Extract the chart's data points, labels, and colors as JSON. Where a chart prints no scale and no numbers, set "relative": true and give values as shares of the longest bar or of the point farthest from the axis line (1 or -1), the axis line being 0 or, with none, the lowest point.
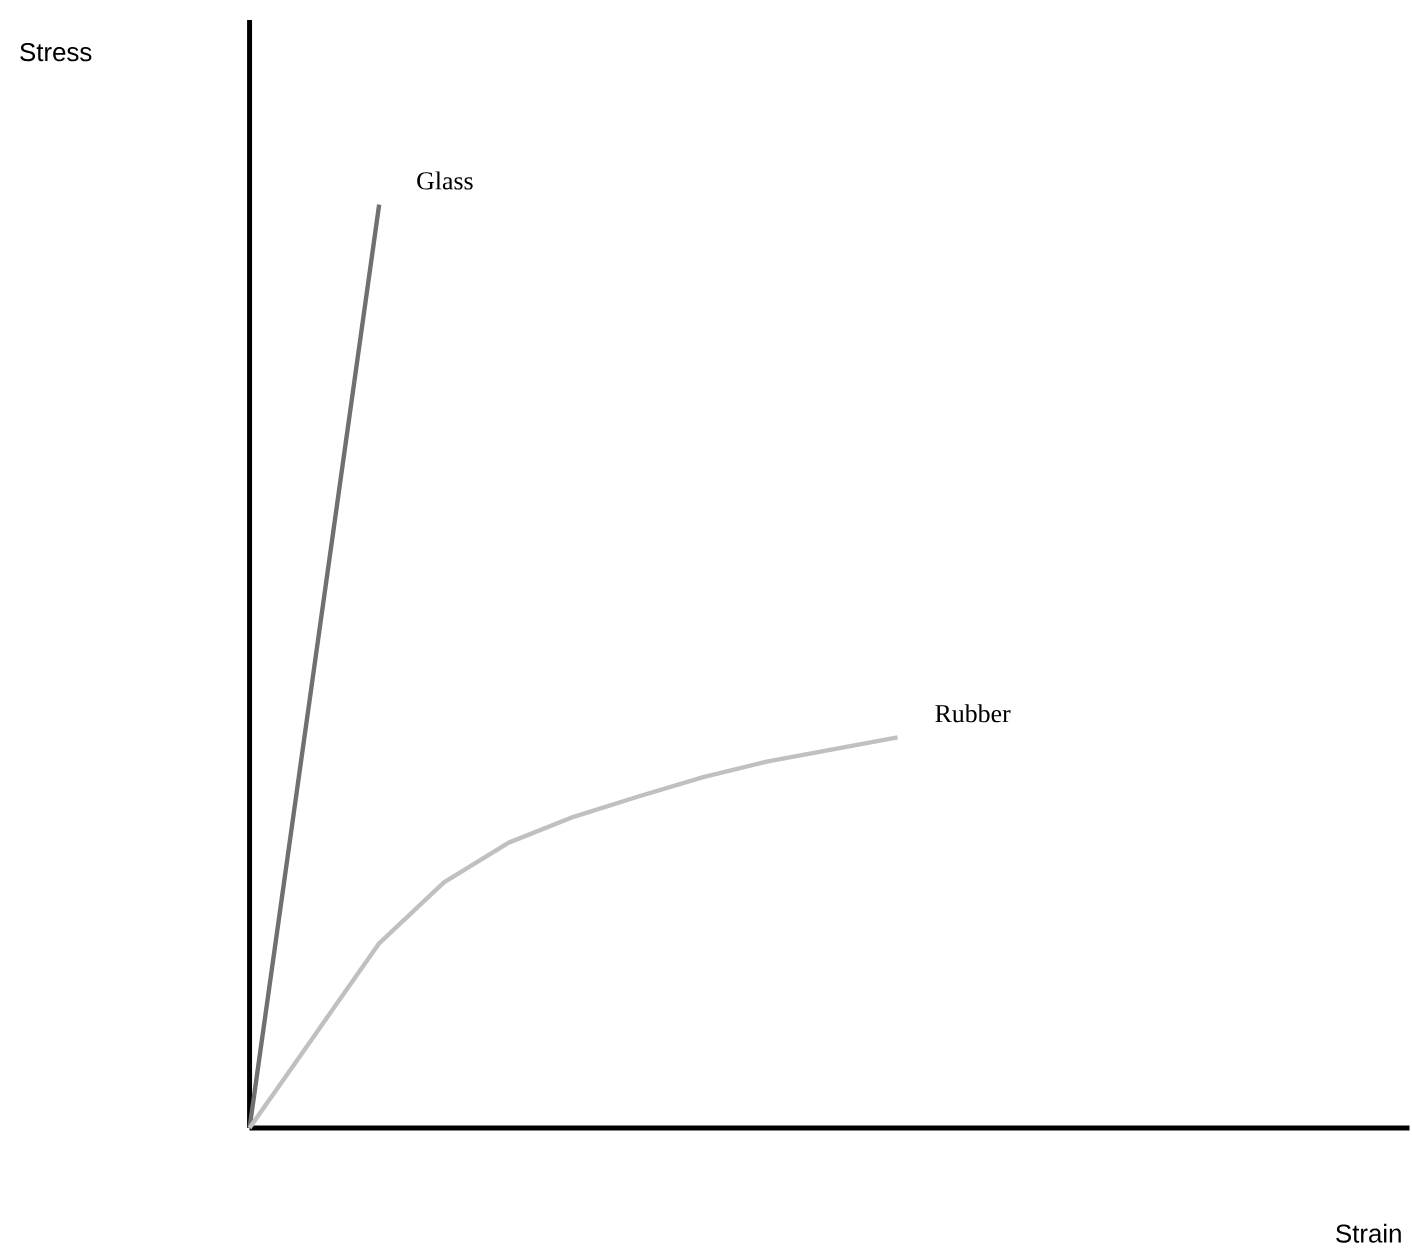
{
  "chart_data": {
    "type": "line",
    "relative": true,
    "annotations": [
      "Stress",
      "Strain"
    ],
    "marker": "none",
    "line_style": "solid",
    "categories": [
      null,
      null,
      null,
      null,
      null,
      null,
      null,
      null,
      null,
      null,
      null
    ],
    "series": [
      {
        "name": "Glass",
        "color": "#707070",
        "values": [
          0,
          0.5,
          1,
          null,
          null,
          null,
          null,
          null,
          null,
          null,
          null
        ]
      },
      {
        "name": "Rubber",
        "color": "#c0c0c0",
        "values": [
          0,
          0.1,
          0.2,
          0.266,
          0.309,
          0.337,
          0.359,
          0.38,
          0.397,
          0.41,
          0.423
        ]
      }
    ]
  }
}
